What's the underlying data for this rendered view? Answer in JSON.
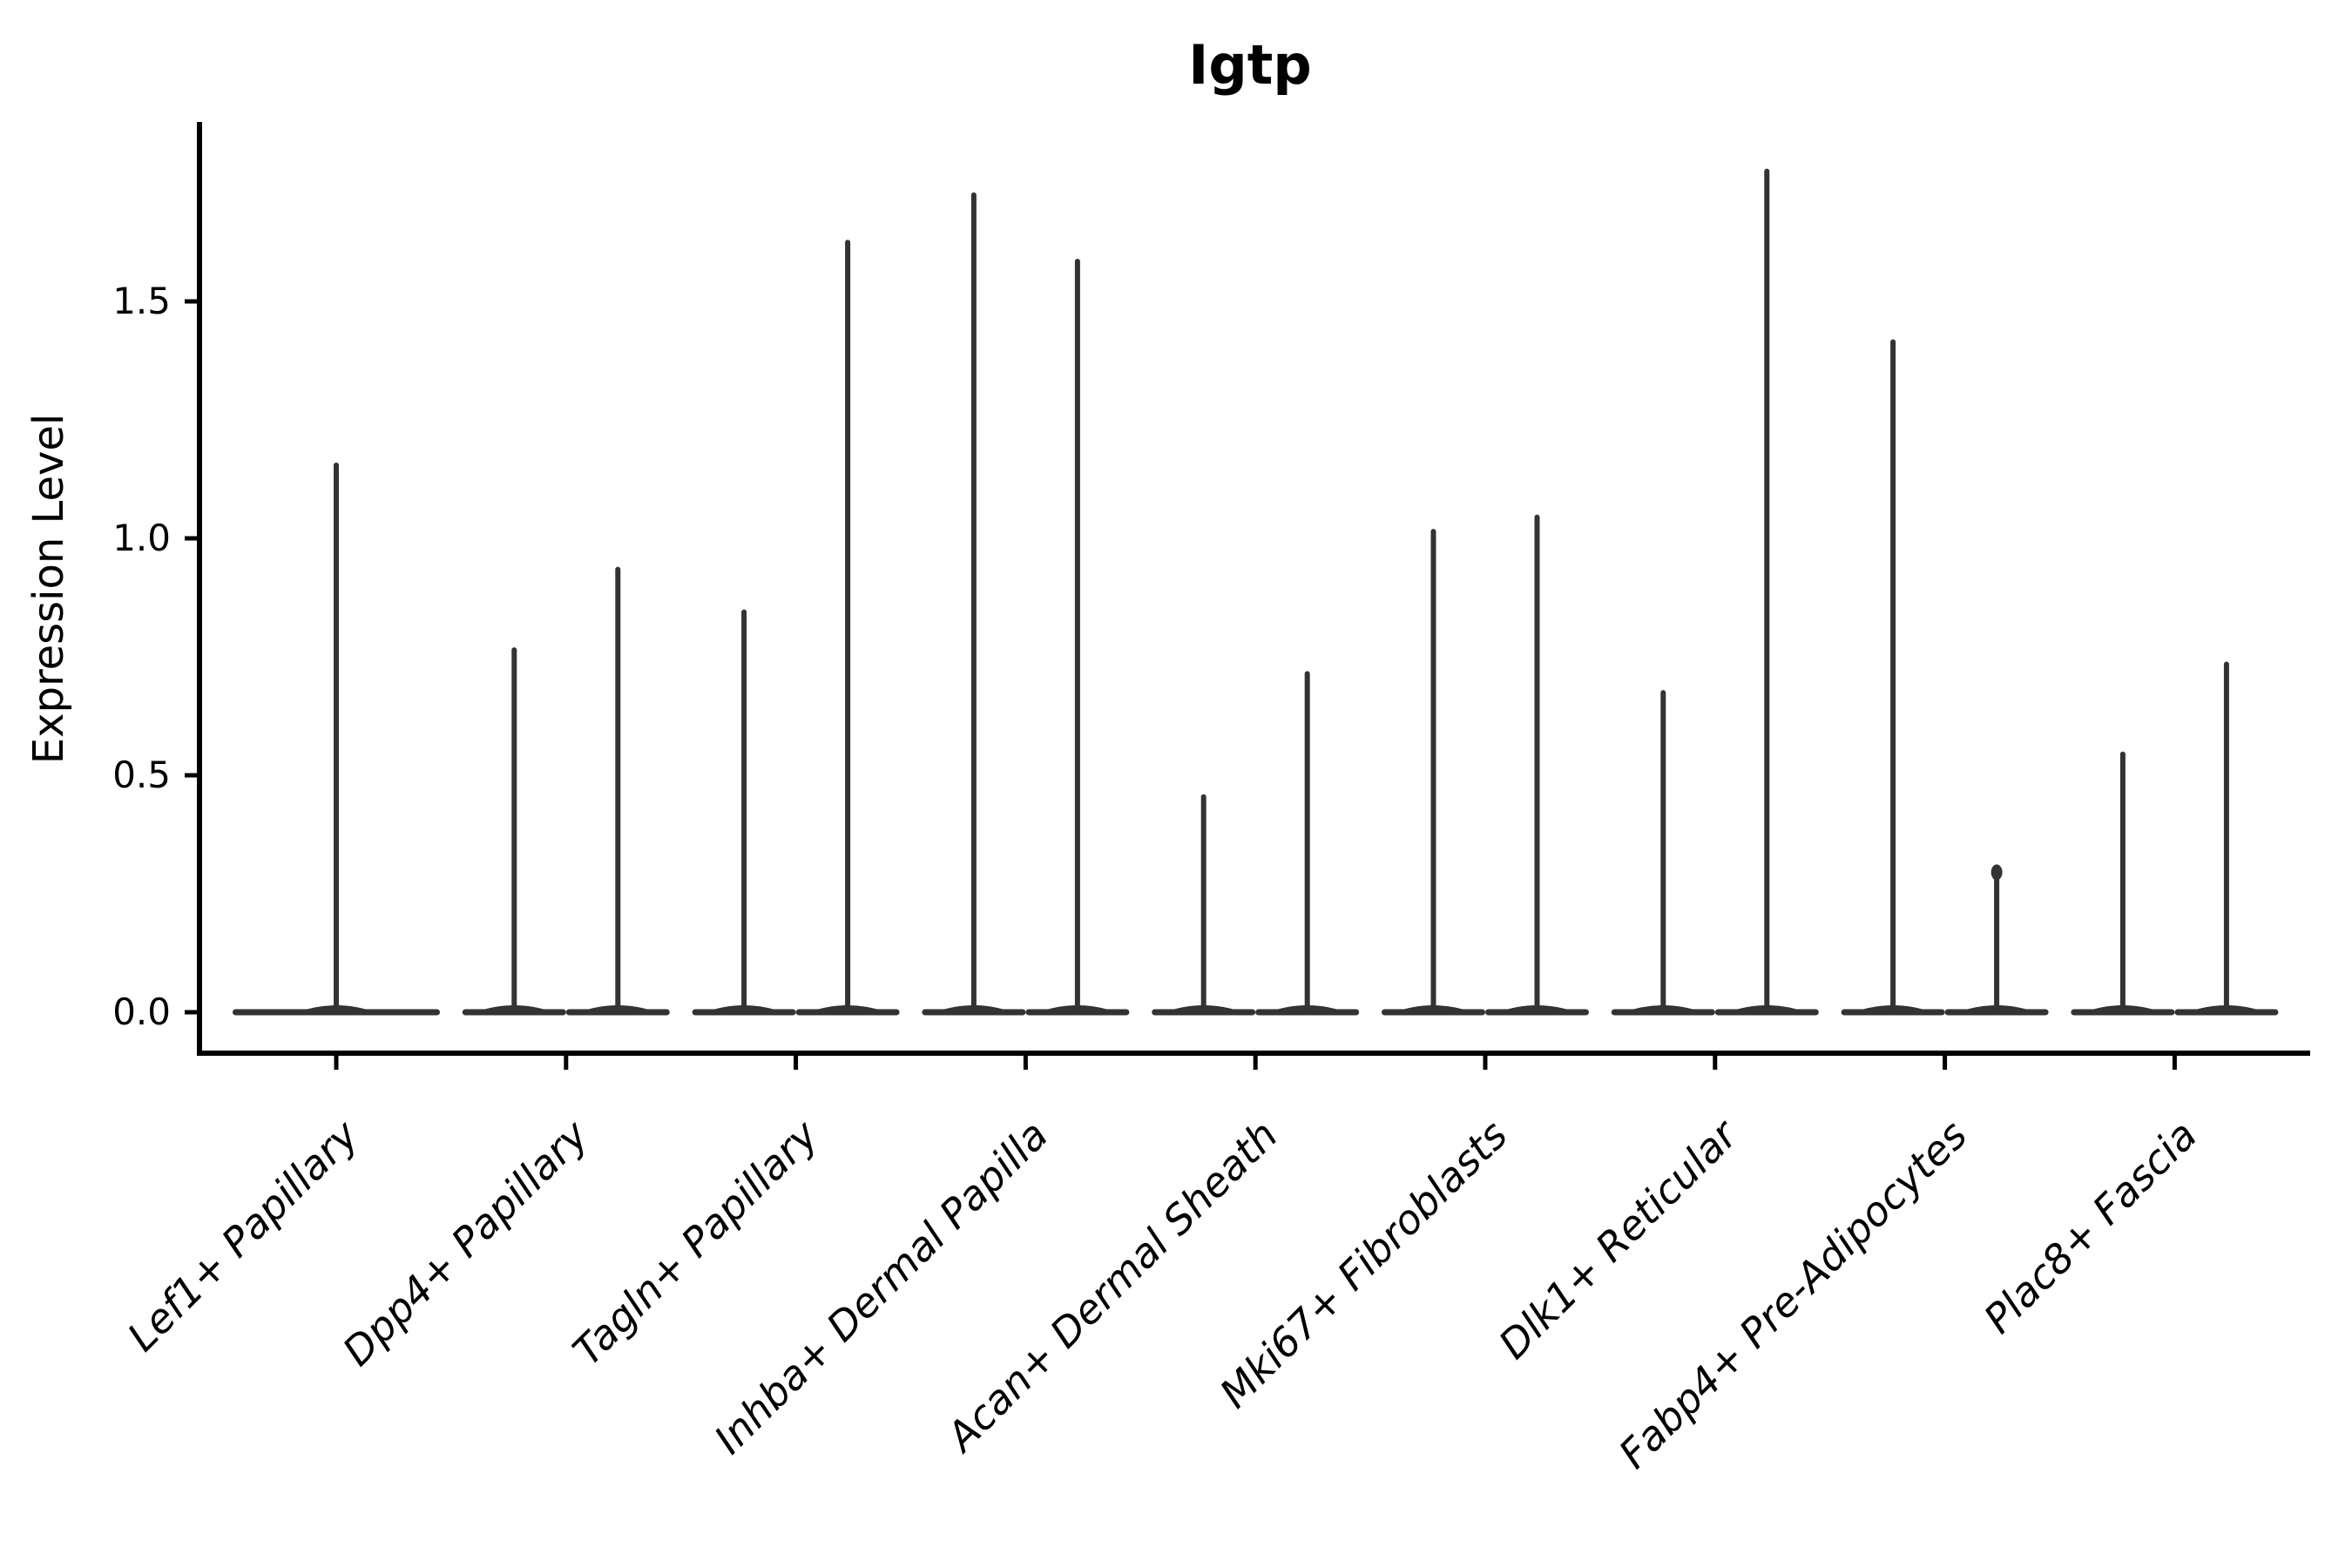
{
  "figure": {
    "title": "Igtp",
    "ylabel": "Expression Level"
  },
  "chart_data": {
    "type": "violin",
    "title": "Igtp",
    "xlabel": "",
    "ylabel": "Expression Level",
    "grid": false,
    "legend": null,
    "ylim": [
      -0.09,
      1.88
    ],
    "ytick_labels": [
      "0.0",
      "0.5",
      "1.0",
      "1.5"
    ],
    "ytick_values": [
      0.0,
      0.5,
      1.0,
      1.5
    ],
    "categories": [
      "Lef1+ Papillary",
      "Dpp4+ Papillary",
      "Tagln+ Papillary",
      "Inhba+ Dermal Papilla",
      "Acan+ Dermal Sheath",
      "Mki67+ Fibroblasts",
      "Dlk1+ Reticular",
      "Fabp4+ Pre-Adipocytes",
      "Plac8+ Fascia"
    ],
    "series": [
      {
        "category": "Lef1+ Papillary",
        "violins": [
          {
            "max": 1.16
          }
        ]
      },
      {
        "category": "Dpp4+ Papillary",
        "violins": [
          {
            "max": 0.77
          },
          {
            "max": 0.94
          }
        ]
      },
      {
        "category": "Tagln+ Papillary",
        "violins": [
          {
            "max": 0.85
          },
          {
            "max": 1.63
          }
        ]
      },
      {
        "category": "Inhba+ Dermal Papilla",
        "violins": [
          {
            "max": 1.73
          },
          {
            "max": 1.59
          }
        ]
      },
      {
        "category": "Acan+ Dermal Sheath",
        "violins": [
          {
            "max": 0.46
          },
          {
            "max": 0.72
          }
        ]
      },
      {
        "category": "Mki67+ Fibroblasts",
        "violins": [
          {
            "max": 1.02
          },
          {
            "max": 1.05
          }
        ]
      },
      {
        "category": "Dlk1+ Reticular",
        "violins": [
          {
            "max": 0.68
          },
          {
            "max": 1.78
          }
        ]
      },
      {
        "category": "Fabp4+ Pre-Adipocytes",
        "violins": [
          {
            "max": 1.42
          },
          {
            "max": 0.31,
            "tip_bulge": true
          }
        ]
      },
      {
        "category": "Plac8+ Fascia",
        "violins": [
          {
            "max": 0.55
          },
          {
            "max": 0.74
          }
        ]
      }
    ],
    "baseline_value": 0.0,
    "colors": {
      "violin": "#333333",
      "axis": "#000000",
      "text": "#000000",
      "background": "#ffffff"
    }
  }
}
